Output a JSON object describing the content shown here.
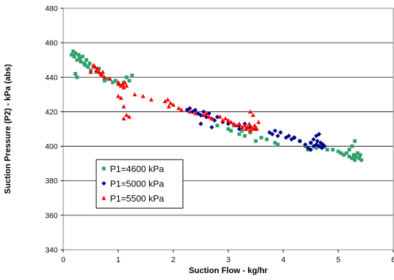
{
  "chart_data": {
    "type": "scatter",
    "title": "",
    "xlabel": "Suction Flow - kg/hr",
    "ylabel": "Suction Pressure (P2) - kPa (abs)",
    "xlim": [
      0,
      6
    ],
    "ylim": [
      340,
      480
    ],
    "x_ticks": [
      "0",
      "1",
      "2",
      "3",
      "4",
      "5",
      "6"
    ],
    "y_ticks": [
      "340",
      "360",
      "380",
      "400",
      "420",
      "440",
      "460",
      "480"
    ],
    "grid": "horizontal major gridlines",
    "legend_position": "lower-left",
    "series": [
      {
        "name": "P1=4600 kPa",
        "marker": "square",
        "color": "#2E9E6B",
        "points": [
          [
            0.15,
            453
          ],
          [
            0.18,
            455
          ],
          [
            0.2,
            452
          ],
          [
            0.22,
            454
          ],
          [
            0.25,
            450
          ],
          [
            0.28,
            453
          ],
          [
            0.3,
            451
          ],
          [
            0.32,
            449
          ],
          [
            0.35,
            452
          ],
          [
            0.38,
            448
          ],
          [
            0.4,
            447
          ],
          [
            0.42,
            450
          ],
          [
            0.45,
            446
          ],
          [
            0.48,
            448
          ],
          [
            0.22,
            442
          ],
          [
            0.25,
            440
          ],
          [
            0.5,
            444
          ],
          [
            0.55,
            446
          ],
          [
            0.6,
            443
          ],
          [
            0.65,
            445
          ],
          [
            0.7,
            441
          ],
          [
            0.75,
            438
          ],
          [
            0.8,
            439
          ],
          [
            0.9,
            437
          ],
          [
            1.0,
            436
          ],
          [
            1.1,
            437
          ],
          [
            1.15,
            440
          ],
          [
            1.2,
            438
          ],
          [
            1.25,
            441
          ],
          [
            1.05,
            435
          ],
          [
            0.95,
            438
          ],
          [
            2.8,
            412
          ],
          [
            3.0,
            410
          ],
          [
            3.05,
            409
          ],
          [
            3.1,
            412
          ],
          [
            3.2,
            407
          ],
          [
            3.3,
            406
          ],
          [
            3.35,
            410
          ],
          [
            3.5,
            403
          ],
          [
            3.6,
            405
          ],
          [
            3.7,
            404
          ],
          [
            3.85,
            402
          ],
          [
            4.2,
            405
          ],
          [
            4.3,
            403
          ],
          [
            4.5,
            402
          ],
          [
            4.6,
            399
          ],
          [
            4.7,
            400
          ],
          [
            4.8,
            398
          ],
          [
            4.9,
            398
          ],
          [
            5.0,
            397
          ],
          [
            5.05,
            396
          ],
          [
            5.1,
            395
          ],
          [
            5.15,
            396
          ],
          [
            5.2,
            394
          ],
          [
            5.25,
            393
          ],
          [
            5.28,
            395
          ],
          [
            5.3,
            392
          ],
          [
            5.32,
            394
          ],
          [
            5.35,
            396
          ],
          [
            5.38,
            393
          ],
          [
            5.2,
            398
          ],
          [
            5.25,
            400
          ],
          [
            5.3,
            403
          ],
          [
            5.4,
            395
          ],
          [
            5.42,
            392
          ],
          [
            4.4,
            400
          ],
          [
            4.45,
            398
          ],
          [
            3.9,
            401
          ],
          [
            3.4,
            408
          ],
          [
            3.25,
            409
          ]
        ]
      },
      {
        "name": "P1=5000 kPa",
        "marker": "diamond",
        "color": "#00008B",
        "points": [
          [
            2.3,
            422
          ],
          [
            2.35,
            420
          ],
          [
            2.4,
            421
          ],
          [
            2.45,
            419
          ],
          [
            2.5,
            418
          ],
          [
            2.55,
            420
          ],
          [
            2.6,
            417
          ],
          [
            2.65,
            419
          ],
          [
            2.7,
            416
          ],
          [
            2.75,
            415
          ],
          [
            2.5,
            413
          ],
          [
            2.7,
            411
          ],
          [
            2.9,
            414
          ],
          [
            3.0,
            413
          ],
          [
            3.2,
            412
          ],
          [
            3.4,
            411
          ],
          [
            3.5,
            410
          ],
          [
            3.75,
            408
          ],
          [
            3.8,
            407
          ],
          [
            3.85,
            409
          ],
          [
            3.9,
            406
          ],
          [
            3.95,
            408
          ],
          [
            4.05,
            405
          ],
          [
            4.1,
            406
          ],
          [
            4.15,
            404
          ],
          [
            4.2,
            405
          ],
          [
            4.3,
            403
          ],
          [
            4.5,
            402
          ],
          [
            4.55,
            404
          ],
          [
            4.6,
            401
          ],
          [
            4.62,
            403
          ],
          [
            4.65,
            400
          ],
          [
            4.68,
            402
          ],
          [
            4.7,
            399
          ],
          [
            4.72,
            401
          ],
          [
            4.75,
            400
          ],
          [
            4.6,
            406
          ],
          [
            4.65,
            407
          ],
          [
            4.55,
            400
          ],
          [
            4.4,
            401
          ],
          [
            4.45,
            399
          ],
          [
            4.5,
            398
          ],
          [
            3.2,
            410
          ],
          [
            3.3,
            413
          ],
          [
            2.8,
            417
          ],
          [
            2.25,
            421
          ]
        ]
      },
      {
        "name": "P1=5500 kPa",
        "marker": "triangle",
        "color": "#FF0000",
        "points": [
          [
            0.55,
            447
          ],
          [
            0.58,
            446
          ],
          [
            0.6,
            444
          ],
          [
            0.62,
            445
          ],
          [
            0.65,
            443
          ],
          [
            0.68,
            442
          ],
          [
            0.7,
            441
          ],
          [
            0.72,
            443
          ],
          [
            0.75,
            440
          ],
          [
            0.5,
            443
          ],
          [
            0.85,
            439
          ],
          [
            1.0,
            437
          ],
          [
            1.02,
            436
          ],
          [
            1.05,
            435
          ],
          [
            1.08,
            436
          ],
          [
            1.1,
            434
          ],
          [
            1.12,
            437
          ],
          [
            1.15,
            435
          ],
          [
            1.0,
            429
          ],
          [
            1.05,
            428
          ],
          [
            1.1,
            423
          ],
          [
            1.15,
            418
          ],
          [
            1.2,
            417
          ],
          [
            1.1,
            416
          ],
          [
            1.3,
            430
          ],
          [
            1.45,
            429
          ],
          [
            1.6,
            427
          ],
          [
            1.85,
            426
          ],
          [
            1.9,
            427
          ],
          [
            1.95,
            425
          ],
          [
            2.0,
            424
          ],
          [
            1.92,
            423
          ],
          [
            2.1,
            422
          ],
          [
            2.15,
            421
          ],
          [
            2.3,
            420
          ],
          [
            2.4,
            419
          ],
          [
            2.55,
            418
          ],
          [
            2.6,
            419
          ],
          [
            2.65,
            417
          ],
          [
            2.7,
            416
          ],
          [
            2.85,
            417
          ],
          [
            2.9,
            415
          ],
          [
            2.95,
            416
          ],
          [
            3.0,
            415
          ],
          [
            3.05,
            414
          ],
          [
            3.1,
            413
          ],
          [
            3.15,
            412
          ],
          [
            3.2,
            413
          ],
          [
            3.25,
            411
          ],
          [
            3.3,
            412
          ],
          [
            3.32,
            410
          ],
          [
            3.35,
            411
          ],
          [
            3.38,
            413
          ],
          [
            3.4,
            409
          ],
          [
            3.42,
            411
          ],
          [
            3.45,
            410
          ],
          [
            3.48,
            412
          ],
          [
            3.5,
            411
          ],
          [
            3.52,
            410
          ],
          [
            3.4,
            420
          ],
          [
            3.45,
            418
          ],
          [
            3.55,
            414
          ]
        ]
      }
    ]
  }
}
